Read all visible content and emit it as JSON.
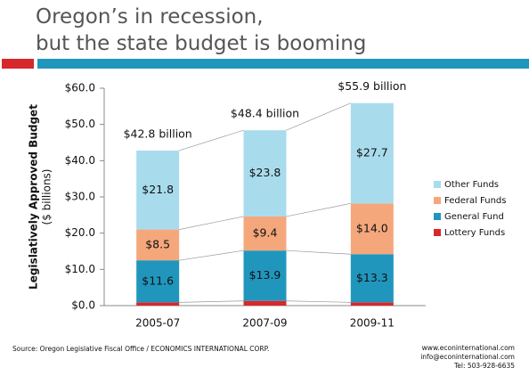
{
  "chart_data": {
    "type": "stacked_bar",
    "title": [
      "Oregon’s in recession,",
      "but the state budget is booming"
    ],
    "ylabel": [
      "Legislatively Approved Budget",
      "($ billions)"
    ],
    "categories": [
      "2005-07",
      "2007-09",
      "2009-11"
    ],
    "series": [
      {
        "name": "Lottery Funds",
        "color": "#d7282b",
        "values": [
          0.9,
          1.3,
          0.9
        ]
      },
      {
        "name": "General Fund",
        "color": "#2196bd",
        "values": [
          11.6,
          13.9,
          13.3
        ],
        "value_labels": [
          "$11.6",
          "$13.9",
          "$13.3"
        ]
      },
      {
        "name": "Federal Funds",
        "color": "#f5a77c",
        "values": [
          8.5,
          9.4,
          14.0
        ],
        "value_labels": [
          "$8.5",
          "$9.4",
          "$14.0"
        ]
      },
      {
        "name": "Other Funds",
        "color": "#a8dced",
        "values": [
          21.8,
          23.8,
          27.7
        ],
        "value_labels": [
          "$21.8",
          "$23.8",
          "$27.7"
        ]
      }
    ],
    "annotations": [
      "$42.8 billion",
      "$48.4 billion",
      "$55.9 billion"
    ],
    "ylim": [
      0,
      60
    ],
    "yticks": [
      {
        "value": 0,
        "label": "$0.0"
      },
      {
        "value": 10,
        "label": "$10.0"
      },
      {
        "value": 20,
        "label": "$20.0"
      },
      {
        "value": 30,
        "label": "$30.0"
      },
      {
        "value": 40,
        "label": "$40.0"
      },
      {
        "value": 50,
        "label": "$50.0"
      },
      {
        "value": 60,
        "label": "$60.0"
      }
    ],
    "source": "Source: Oregon Legislative Fiscal Office / ECONOMICS INTERNATIONAL CORP.",
    "contact": [
      "www.econinternational.com",
      "info@econinternational.com",
      "Tel: 503-928-6635"
    ]
  }
}
